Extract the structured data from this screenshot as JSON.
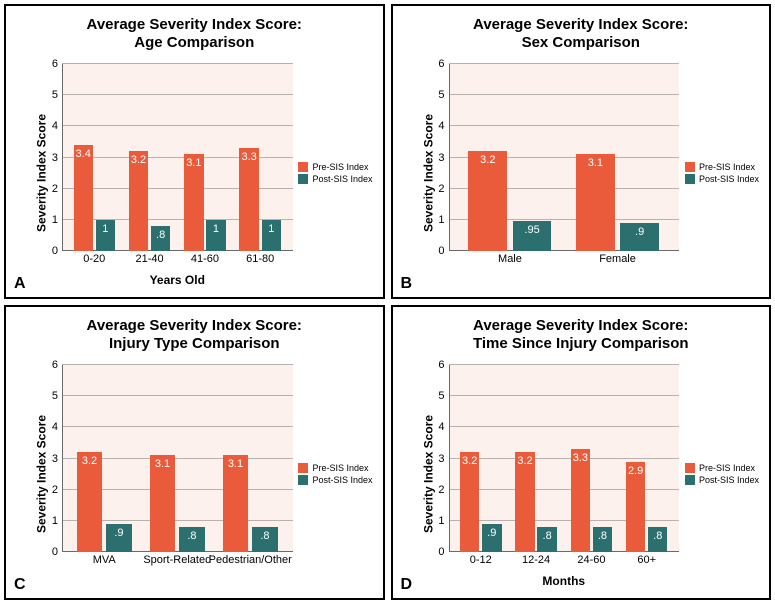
{
  "colors": {
    "pre": "#e95b3a",
    "post": "#2b6f6f",
    "plot_bg": "#fdf1ed",
    "grid": "#b8b2ae",
    "panel_border": "#000000",
    "text": "#000000"
  },
  "ylim": [
    0,
    6
  ],
  "ytick_step": 1,
  "legend": {
    "pre": "Pre-SIS Index",
    "post": "Post-SIS Index"
  },
  "panels": [
    {
      "letter": "A",
      "title1": "Average Severity Index Score:",
      "title2": "Age Comparison",
      "ylabel": "Severity Index Score",
      "xlabel": "Years Old",
      "categories": [
        "0-20",
        "21-40",
        "41-60",
        "61-80"
      ],
      "pre": [
        3.4,
        3.2,
        3.1,
        3.3
      ],
      "post": [
        1.0,
        0.8,
        1.0,
        1.0
      ],
      "post_labels": [
        "1",
        ".8",
        "1",
        "1"
      ]
    },
    {
      "letter": "B",
      "title1": "Average Severity Index Score:",
      "title2": "Sex Comparison",
      "ylabel": "Severity Index Score",
      "xlabel": "",
      "categories": [
        "Male",
        "Female"
      ],
      "pre": [
        3.2,
        3.1
      ],
      "post": [
        0.95,
        0.9
      ],
      "post_labels": [
        ".95",
        ".9"
      ]
    },
    {
      "letter": "C",
      "title1": "Average Severity Index Score:",
      "title2": "Injury Type Comparison",
      "ylabel": "Severity Index Score",
      "xlabel": "",
      "categories": [
        "MVA",
        "Sport-Related",
        "Pedestrian/Other"
      ],
      "pre": [
        3.2,
        3.1,
        3.1
      ],
      "post": [
        0.9,
        0.8,
        0.8
      ],
      "post_labels": [
        ".9",
        ".8",
        ".8"
      ]
    },
    {
      "letter": "D",
      "title1": "Average Severity Index Score:",
      "title2": "Time Since Injury Comparison",
      "ylabel": "Severity Index Score",
      "xlabel": "Months",
      "categories": [
        "0-12",
        "12-24",
        "24-60",
        "60+"
      ],
      "pre": [
        3.2,
        3.2,
        3.3,
        2.9
      ],
      "post": [
        0.9,
        0.8,
        0.8,
        0.8
      ],
      "post_labels": [
        ".9",
        ".8",
        ".8",
        ".8"
      ]
    }
  ]
}
